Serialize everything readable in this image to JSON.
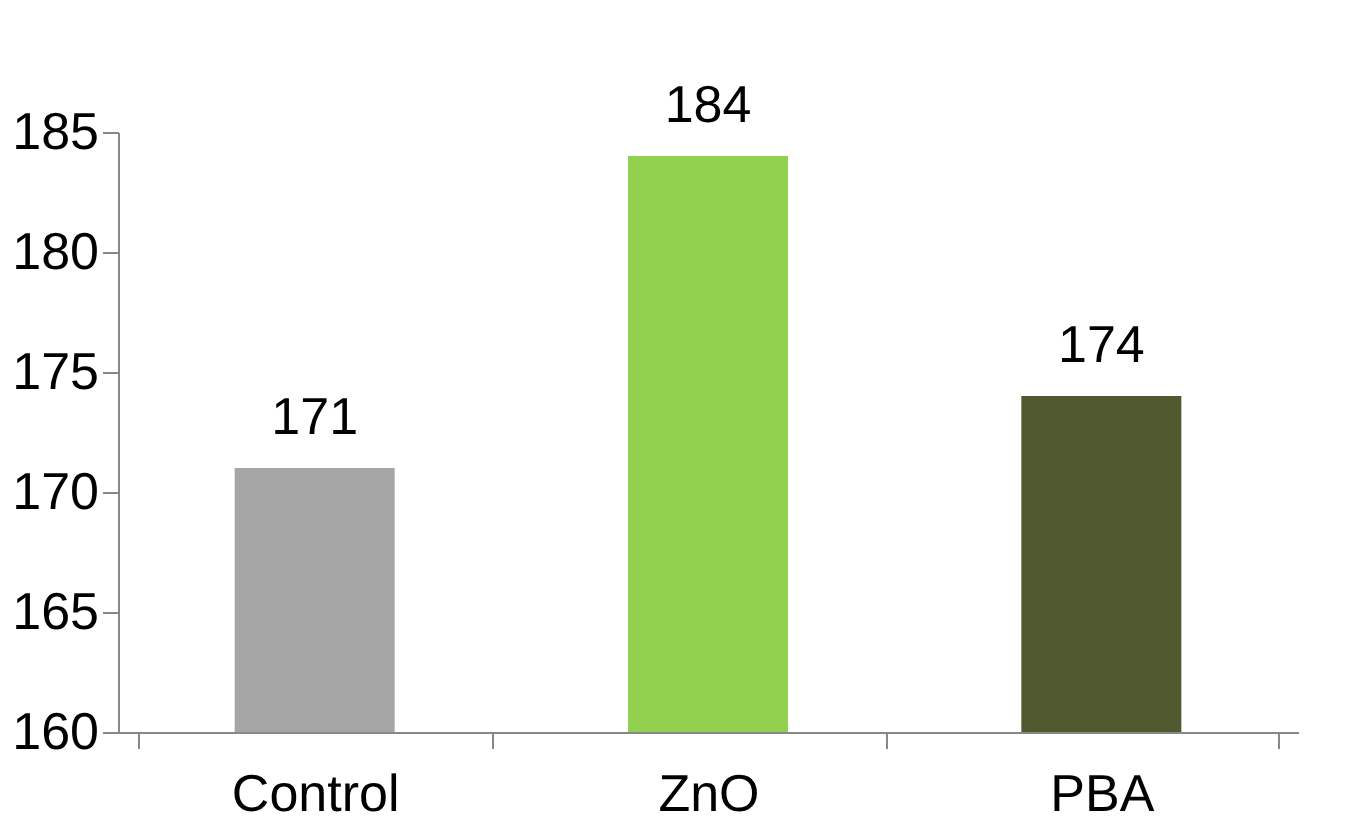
{
  "chart_data": {
    "type": "bar",
    "categories": [
      "Control",
      "ZnO",
      "PBA"
    ],
    "values": [
      171,
      184,
      174
    ],
    "colors": [
      "#a5a5a5",
      "#92d050",
      "#4f5a30"
    ],
    "ylim": [
      160,
      185
    ],
    "yticks": [
      160,
      165,
      170,
      175,
      180,
      185
    ],
    "data_labels": true
  }
}
